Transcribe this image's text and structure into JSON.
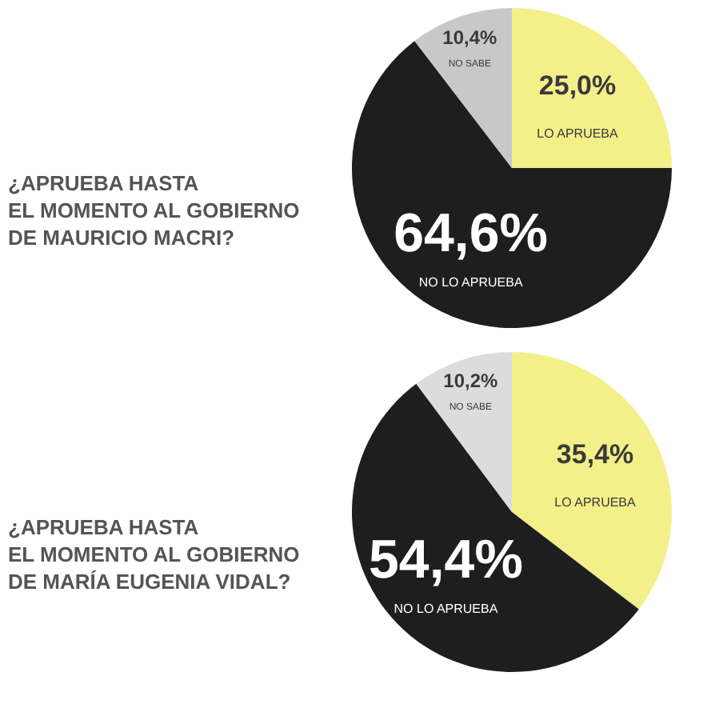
{
  "chart_data": [
    {
      "type": "pie",
      "title": "¿APRUEBA HASTA\nEL MOMENTO AL GOBIERNO\nDE MAURICIO MACRI?",
      "categories": [
        "LO APRUEBA",
        "NO LO APRUEBA",
        "NO SABE"
      ],
      "values": [
        25.0,
        64.6,
        10.4
      ],
      "colors": [
        "#f3f08a",
        "#1e1e1e",
        "#c8c8c8"
      ],
      "value_labels": [
        "25,0%",
        "64,6%",
        "10,4%"
      ]
    },
    {
      "type": "pie",
      "title": "¿APRUEBA HASTA\nEL MOMENTO AL GOBIERNO\nDE MARÍA EUGENIA VIDAL?",
      "categories": [
        "LO APRUEBA",
        "NO LO APRUEBA",
        "NO SABE"
      ],
      "values": [
        35.4,
        54.4,
        10.2
      ],
      "colors": [
        "#f3f08a",
        "#1e1e1e",
        "#dcdcdc"
      ],
      "value_labels": [
        "35,4%",
        "54,4%",
        "10,2%"
      ]
    }
  ]
}
